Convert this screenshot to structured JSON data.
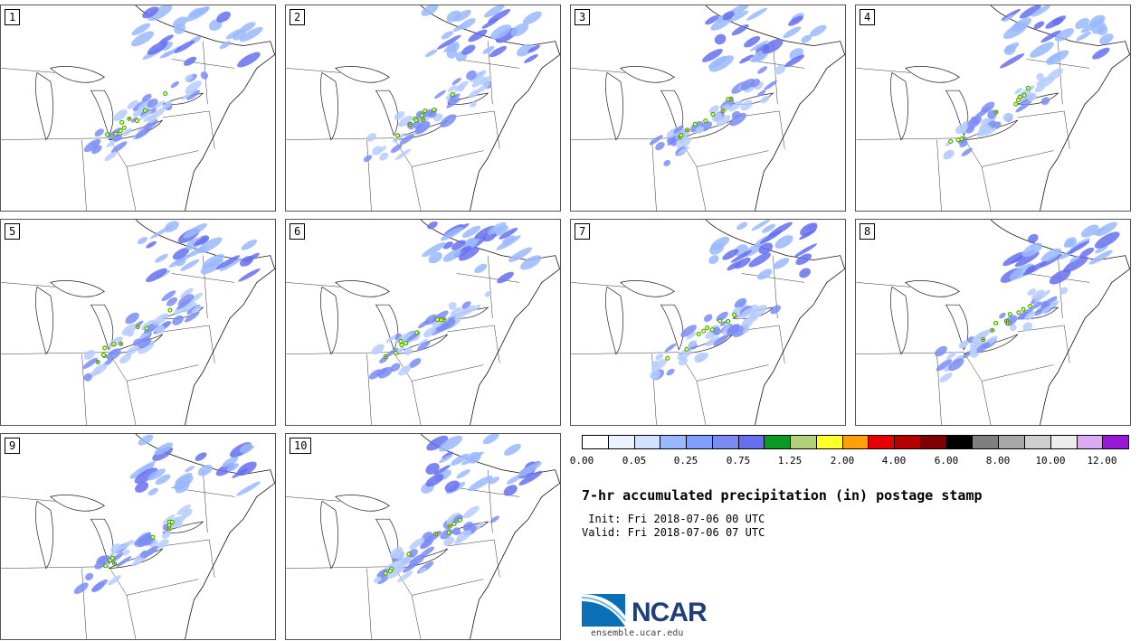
{
  "panels": [
    {
      "label": "1"
    },
    {
      "label": "2"
    },
    {
      "label": "3"
    },
    {
      "label": "4"
    },
    {
      "label": "5"
    },
    {
      "label": "6"
    },
    {
      "label": "7"
    },
    {
      "label": "8"
    },
    {
      "label": "9"
    },
    {
      "label": "10"
    }
  ],
  "colorbar": {
    "colors": [
      "#ffffff",
      "#eaf3ff",
      "#d0e2ff",
      "#9ab8ff",
      "#7f9eff",
      "#7a8cf4",
      "#6670ee",
      "#0b9a25",
      "#b3d07a",
      "#ffff2a",
      "#ff9f0a",
      "#e60000",
      "#b50000",
      "#7f0000",
      "#000000",
      "#7f7f7f",
      "#a8a8a8",
      "#cfcfcf",
      "#ededed",
      "#dbaaf0",
      "#9a18d8"
    ],
    "tick_labels": [
      "0.00",
      "0.05",
      "0.25",
      "0.75",
      "1.25",
      "2.00",
      "4.00",
      "6.00",
      "8.00",
      "10.00",
      "12.00"
    ]
  },
  "title": "7-hr accumulated precipitation (in) postage stamp",
  "init": " Init: Fri 2018-07-06 00 UTC",
  "valid": "Valid: Fri 2018-07-06 07 UTC",
  "logo": {
    "text": "NCAR",
    "url": "ensemble.ucar.edu",
    "color": "#1f3f7a"
  }
}
